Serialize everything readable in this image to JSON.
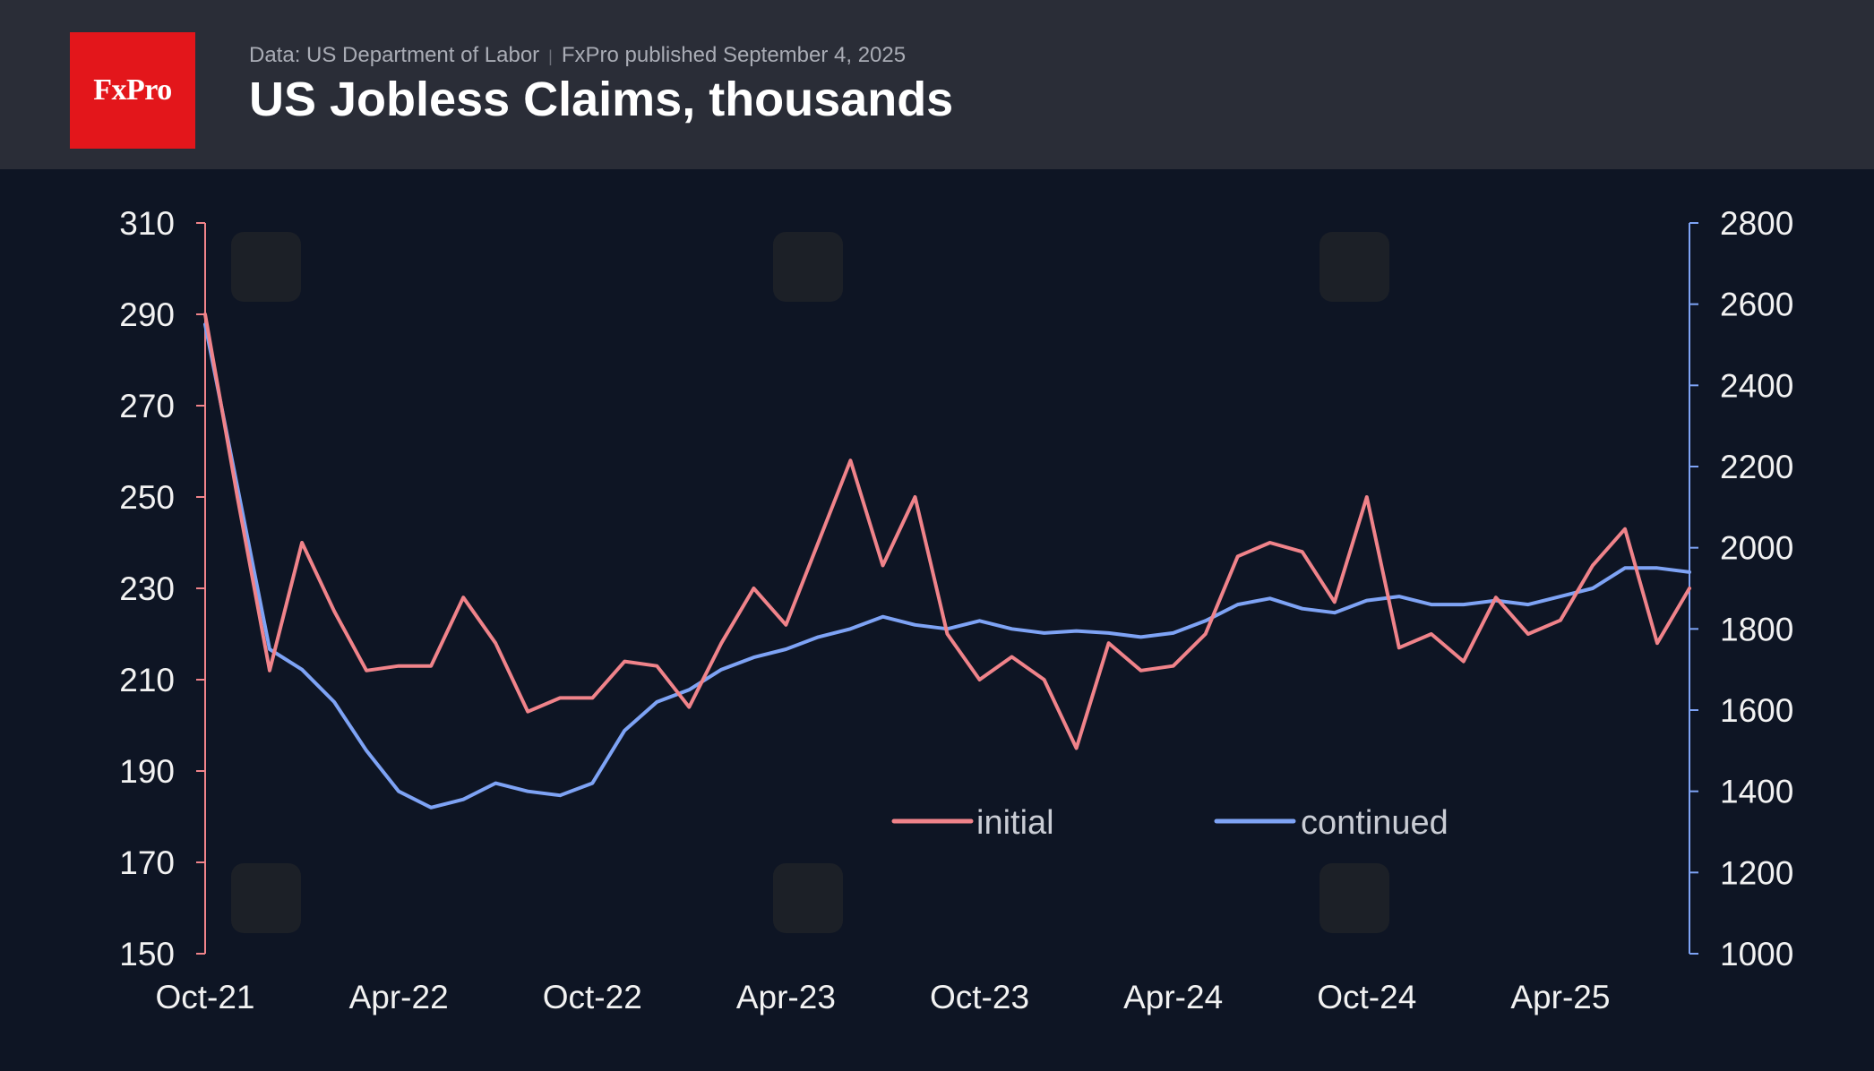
{
  "header": {
    "logo_text": "FxPro",
    "source": "Data: US Department of Labor",
    "published": "FxPro published September 4, 2025",
    "title": "US Jobless Claims, thousands"
  },
  "colors": {
    "initial": "#f0838a",
    "continued": "#7ea3f5",
    "background": "#0e1524",
    "header_bg": "#2a2d37",
    "logo_bg": "#e3161b"
  },
  "chart_data": {
    "type": "line",
    "x_ticks": [
      "Oct-21",
      "Apr-22",
      "Oct-22",
      "Apr-23",
      "Oct-23",
      "Apr-24",
      "Oct-24",
      "Apr-25"
    ],
    "x_range": [
      "2021-10",
      "2025-08"
    ],
    "y_left": {
      "ylim": [
        150,
        310
      ],
      "ticks": [
        "150",
        "170",
        "190",
        "210",
        "230",
        "250",
        "270",
        "290",
        "310"
      ]
    },
    "y_right": {
      "ylim": [
        1000,
        2800
      ],
      "ticks": [
        "1000",
        "1200",
        "1400",
        "1600",
        "1800",
        "2000",
        "2200",
        "2400",
        "2600",
        "2800"
      ]
    },
    "grid": false,
    "legend_position": "bottom-center",
    "series": [
      {
        "name": "initial",
        "axis": "left",
        "x": [
          "2021-10",
          "2021-11",
          "2021-12",
          "2022-01",
          "2022-02",
          "2022-03",
          "2022-04",
          "2022-05",
          "2022-06",
          "2022-07",
          "2022-08",
          "2022-09",
          "2022-10",
          "2022-11",
          "2022-12",
          "2023-01",
          "2023-02",
          "2023-03",
          "2023-04",
          "2023-05",
          "2023-06",
          "2023-07",
          "2023-08",
          "2023-09",
          "2023-10",
          "2023-11",
          "2023-12",
          "2024-01",
          "2024-02",
          "2024-03",
          "2024-04",
          "2024-05",
          "2024-06",
          "2024-07",
          "2024-08",
          "2024-09",
          "2024-10",
          "2024-11",
          "2024-12",
          "2025-01",
          "2025-02",
          "2025-03",
          "2025-04",
          "2025-05",
          "2025-06",
          "2025-07",
          "2025-08"
        ],
        "values": [
          290,
          250,
          212,
          240,
          225,
          212,
          213,
          213,
          228,
          218,
          203,
          206,
          206,
          214,
          213,
          204,
          218,
          230,
          222,
          240,
          258,
          235,
          250,
          220,
          210,
          215,
          210,
          195,
          218,
          212,
          213,
          220,
          237,
          240,
          238,
          227,
          250,
          217,
          220,
          214,
          228,
          220,
          223,
          235,
          243,
          218,
          230
        ]
      },
      {
        "name": "continued",
        "axis": "right",
        "x": [
          "2021-10",
          "2021-11",
          "2021-12",
          "2022-01",
          "2022-02",
          "2022-03",
          "2022-04",
          "2022-05",
          "2022-06",
          "2022-07",
          "2022-08",
          "2022-09",
          "2022-10",
          "2022-11",
          "2022-12",
          "2023-01",
          "2023-02",
          "2023-03",
          "2023-04",
          "2023-05",
          "2023-06",
          "2023-07",
          "2023-08",
          "2023-09",
          "2023-10",
          "2023-11",
          "2023-12",
          "2024-01",
          "2024-02",
          "2024-03",
          "2024-04",
          "2024-05",
          "2024-06",
          "2024-07",
          "2024-08",
          "2024-09",
          "2024-10",
          "2024-11",
          "2024-12",
          "2025-01",
          "2025-02",
          "2025-03",
          "2025-04",
          "2025-05",
          "2025-06",
          "2025-07",
          "2025-08"
        ],
        "values": [
          2550,
          2150,
          1750,
          1700,
          1620,
          1500,
          1400,
          1360,
          1380,
          1420,
          1400,
          1390,
          1420,
          1550,
          1620,
          1650,
          1700,
          1730,
          1750,
          1780,
          1800,
          1830,
          1810,
          1800,
          1820,
          1800,
          1790,
          1795,
          1790,
          1780,
          1790,
          1820,
          1860,
          1875,
          1850,
          1840,
          1870,
          1880,
          1860,
          1860,
          1870,
          1860,
          1880,
          1900,
          1950,
          1950,
          1940
        ]
      }
    ]
  }
}
